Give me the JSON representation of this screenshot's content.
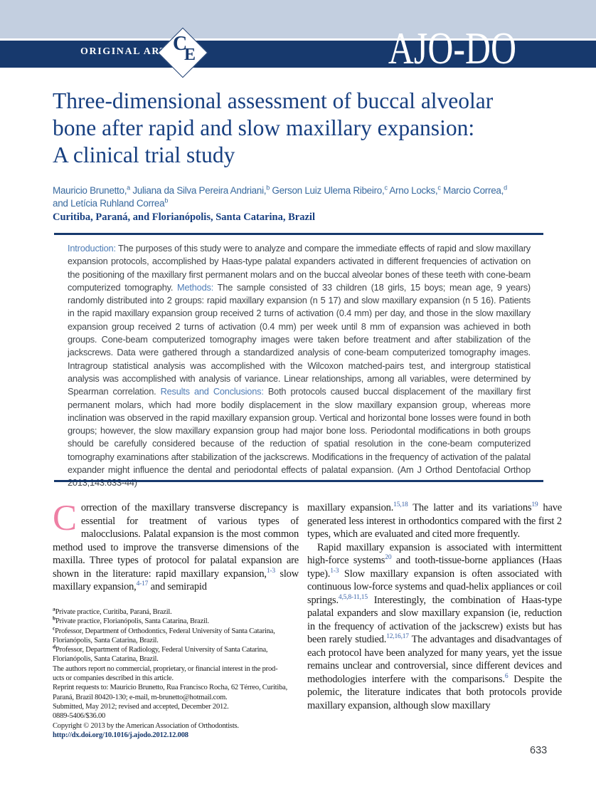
{
  "header": {
    "article_type": "ORIGINAL ARTICLE",
    "ce_badge": {
      "letter_top": "C",
      "letter_bottom": "E"
    },
    "journal_logo": "AJO-DO"
  },
  "title_lines": [
    "Three-dimensional assessment of buccal alveolar",
    "bone after rapid and slow maxillary expansion:",
    "A clinical trial study"
  ],
  "byline": {
    "authors_lines_html": [
      "Mauricio Brunetto,<sup>a</sup> Juliana da Silva Pereira Andriani,<sup>b</sup> Gerson Luiz Ulema Ribeiro,<sup>c</sup> Arno Locks,<sup>c</sup> Marcio Correa,<sup>d</sup>",
      "and Let&iacute;cia Ruhland Correa<sup>b</sup>"
    ],
    "affiliation": "Curitiba, Paraná, and Florianópolis, Santa Catarina, Brazil"
  },
  "abstract_html": "<span class=\"ab-label\">Introduction: </span>The purposes of this study were to analyze and compare the immediate effects of rapid and slow maxillary expansion protocols, accomplished by Haas-type palatal expanders activated in different frequencies of activation on the positioning of the maxillary first permanent molars and on the buccal alveolar bones of these teeth with cone-beam computerized tomography. <span class=\"ab-label\">Methods: </span>The sample consisted of 33 children (18 girls, 15 boys; mean age, 9 years) randomly distributed into 2 groups: rapid maxillary expansion (n 5 17) and slow maxillary expansion (n 5 16). Patients in the rapid maxillary expansion group received 2 turns of activation (0.4 mm) per day, and those in the slow maxillary expansion group received 2 turns of activation (0.4 mm) per week until 8 mm of expansion was achieved in both groups. Cone-beam computerized tomography images were taken before treatment and after stabilization of the jackscrews. Data were gathered through a standardized analysis of cone-beam computerized tomography images. Intragroup statistical analysis was accomplished with the Wilcoxon matched-pairs test, and intergroup statistical analysis was accomplished with analysis of variance. Linear relationships, among all variables, were determined by Spearman correlation. <span class=\"ab-label\">Results and Conclusions: </span>Both protocols caused buccal displacement of the maxillary first permanent molars, which had more bodily displacement in the slow maxillary expansion group, whereas more inclination was observed in the rapid maxillary expansion group. Vertical and horizontal bone losses were found in both groups; however, the slow maxillary expansion group had major bone loss. Periodontal modifications in both groups should be carefully considered because of the reduction of spatial resolution in the cone-beam computerized tomography examinations after stabilization of the jackscrews. Modifications in the frequency of activation of the palatal expander might influence the dental and periodontal effects of palatal expansion. (Am J Orthod Dentofacial Orthop 2013;143:633-44)",
  "body": {
    "dropcap": "C",
    "left_para_html": "orrection of the maxillary transverse discrepancy is essential for treatment of various types of malocclusions. Palatal expansion is the most common method used to improve the transverse dimensions of the maxilla. Three types of protocol for palatal expansion are shown in the literature: rapid maxillary expansion,<sup class=\"ref\">1-3</sup> slow maxillary expansion,<sup class=\"ref\">4-17</sup> and semirapid",
    "right_paras_html": [
      "maxillary expansion.<sup class=\"ref\">15,18</sup> The latter and its variations<sup class=\"ref\">19</sup> have generated less interest in orthodontics compared with the first 2 types, which are evaluated and cited more frequently.",
      "Rapid maxillary expansion is associated with intermittent high-force systems<sup class=\"ref\">20</sup> and tooth-tissue-borne appliances (Haas type).<sup class=\"ref\">1-3</sup> Slow maxillary expansion is often associated with continuous low-force systems and quad-helix appliances or coil springs.<sup class=\"ref\">4,5,8-11,15</sup> Interestingly, the combination of Haas-type palatal expanders and slow maxillary expansion (ie, reduction in the frequency of activation of the jackscrew) exists but has been rarely studied.<sup class=\"ref\">12,16,17</sup> The advantages and disadvantages of each protocol have been analyzed for many years, yet the issue remains unclear and controversial, since different devices and methodologies interfere with the comparisons.<sup class=\"ref\">6</sup> Despite the polemic, the literature indicates that both protocols provide maxillary expansion, although slow maxillary"
    ]
  },
  "footnote_lines_html": [
    "<sup>a</sup>Private practice, Curitiba, Paraná, Brazil.",
    "<sup>b</sup>Private practice, Florianópolis, Santa Catarina, Brazil.",
    "<sup>c</sup>Professor, Department of Orthodontics, Federal University of Santa Catarina,",
    "Florianópolis, Santa Catarina, Brazil.",
    "<sup>d</sup>Professor, Department of Radiology, Federal University of Santa Catarina,",
    "Florianópolis, Santa Catarina, Brazil.",
    "The authors report no commercial, proprietary, or financial interest in the prod-",
    "ucts or companies described in this article.",
    "Reprint requests to: Mauricio Brunetto, Rua Francisco Rocha, 62 Térreo, Curitiba,",
    "Paraná, Brazil 80420-130; e-mail, m-brunetto@hotmail.com.",
    "Submitted, May 2012; revised and accepted, December 2012.",
    "0889-5406/$36.00",
    "Copyright © 2013 by the American Association of Orthodontists.",
    "http://dx.doi.org/10.1016/j.ajodo.2012.12.008"
  ],
  "page_number": "633",
  "colors": {
    "navy": "#17396d",
    "band_light": "#c3cfe0",
    "title_blue": "#173f80",
    "author_blue": "#38699e",
    "abstract_label_blue": "#4e7cb5",
    "dropcap_pink": "#ee7fa4",
    "reference_blue": "#3b63a8"
  }
}
